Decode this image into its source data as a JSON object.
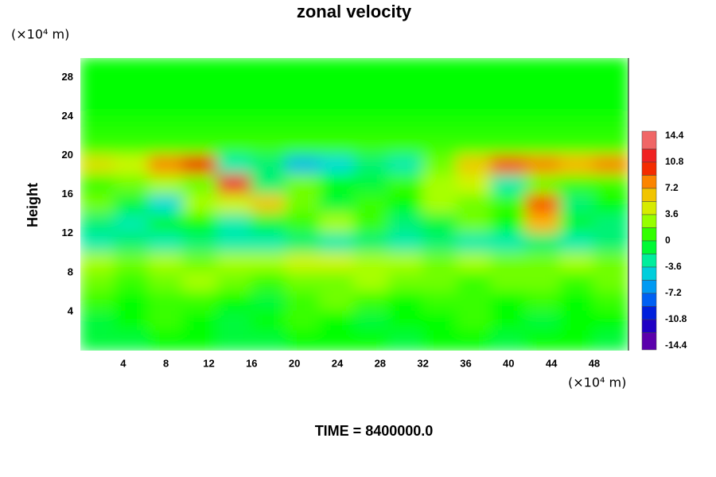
{
  "chart_data": {
    "type": "heatmap",
    "title": "zonal velocity",
    "y_label": "Height",
    "y_unit": "(×10⁴ m)",
    "x_unit": "(×10⁴ m)",
    "footer": "TIME = 8400000.0",
    "xlim": [
      0,
      51.2
    ],
    "ylim": [
      0,
      30
    ],
    "xticks": [
      4,
      8,
      12,
      16,
      20,
      24,
      28,
      32,
      36,
      40,
      44,
      48
    ],
    "yticks": [
      4,
      8,
      12,
      16,
      20,
      24,
      28
    ],
    "x": [
      1.6,
      4.8,
      8,
      11.2,
      14.4,
      17.6,
      20.8,
      24,
      27.2,
      30.4,
      33.6,
      36.8,
      40,
      43.2,
      46.4,
      49.6
    ],
    "y": [
      29,
      27,
      25,
      23,
      21,
      19,
      17,
      15,
      13,
      11,
      9,
      7,
      5,
      3,
      1
    ],
    "z": [
      [
        0,
        0,
        0,
        0,
        0,
        0,
        0,
        0,
        0,
        0,
        0,
        0,
        0,
        0,
        0,
        0
      ],
      [
        0,
        0,
        0,
        0,
        0,
        0,
        0,
        0,
        0,
        0,
        0,
        0,
        0,
        0,
        0,
        0
      ],
      [
        0,
        0,
        0,
        0,
        0,
        0,
        0,
        0,
        0,
        0,
        0,
        0,
        0,
        0,
        0,
        0
      ],
      [
        0.5,
        0.5,
        0.5,
        0.5,
        0.5,
        0.5,
        0.5,
        0.5,
        0.5,
        0.5,
        0.5,
        0.5,
        0.5,
        0.5,
        0.5,
        0.5
      ],
      [
        1,
        1,
        1,
        1,
        1,
        1,
        1,
        1,
        1,
        1,
        1,
        1,
        1,
        1,
        1,
        1
      ],
      [
        5,
        4,
        8,
        10,
        -3,
        -2,
        -5,
        -4,
        -2,
        -3,
        2,
        6,
        9,
        8,
        7,
        8
      ],
      [
        1,
        2,
        3,
        2,
        12,
        -2,
        2,
        0,
        -1,
        1,
        3,
        4,
        -3,
        2,
        1,
        1
      ],
      [
        2,
        -1,
        -4,
        3,
        4,
        6,
        2,
        -1,
        1,
        0,
        3,
        2,
        1,
        9,
        -2,
        0
      ],
      [
        -2,
        -3,
        -1,
        0,
        -3,
        -1,
        1,
        3,
        1,
        -2,
        -1,
        2,
        0,
        7,
        -1,
        -2
      ],
      [
        -3,
        -2,
        -3,
        -2,
        -3,
        -3,
        -2,
        -3,
        -2,
        -3,
        -2,
        -3,
        -3,
        -2,
        -3,
        -2
      ],
      [
        3,
        2,
        3,
        2,
        3,
        3,
        4,
        4,
        3,
        3,
        2,
        3,
        2,
        2,
        3,
        2
      ],
      [
        2,
        1,
        2,
        3,
        2,
        1,
        2,
        2,
        3,
        2,
        2,
        1,
        2,
        2,
        1,
        2
      ],
      [
        1,
        0,
        1,
        1,
        0,
        -1,
        1,
        2,
        1,
        0,
        1,
        1,
        0,
        1,
        0,
        1
      ],
      [
        -1,
        0,
        1,
        0,
        -1,
        0,
        1,
        0,
        -1,
        0,
        0,
        1,
        0,
        -1,
        0,
        0
      ],
      [
        -1,
        -1,
        0,
        0,
        -1,
        -1,
        0,
        0,
        0,
        -1,
        0,
        0,
        -1,
        0,
        0,
        -1
      ]
    ],
    "clim": [
      -14.4,
      14.4
    ],
    "cticks": [
      14.4,
      10.8,
      7.2,
      3.6,
      0,
      -3.6,
      -7.2,
      -10.8,
      -14.4
    ],
    "colorscale": [
      "#7a00a0",
      "#0000d0",
      "#0080ff",
      "#00e8d0",
      "#00ff00",
      "#c8ff00",
      "#ffb000",
      "#f00000",
      "#f08888"
    ]
  }
}
